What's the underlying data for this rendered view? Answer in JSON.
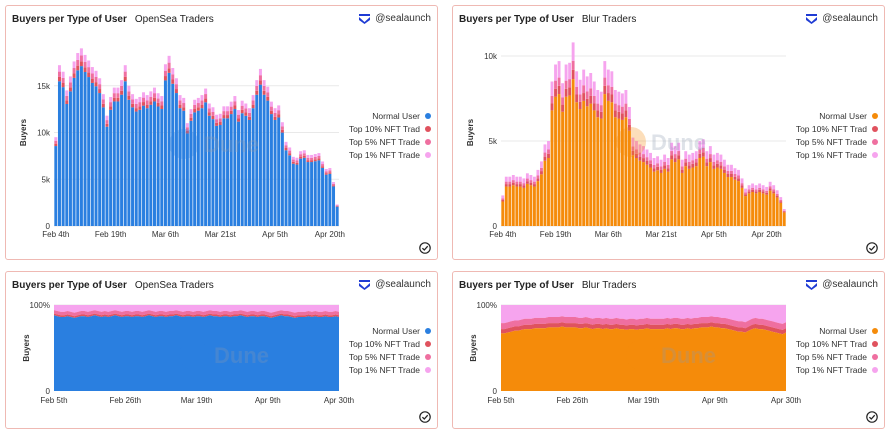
{
  "brand": "@sealaunch",
  "colors": {
    "normal_opensea": "#2a7fe0",
    "normal_blur": "#f58b0a",
    "top10": "#e0525e",
    "top5": "#ef6fa0",
    "top1": "#f6a4ee"
  },
  "panels": [
    {
      "title_bold": "Buyers per Type of User",
      "title_sub": "OpenSea Traders",
      "legend": [
        "Normal User",
        "Top 10% NFT Trad",
        "Top 5% NFT Trade",
        "Top 1% NFT Trade"
      ]
    },
    {
      "title_bold": "Buyers per Type of User",
      "title_sub": "Blur Traders",
      "legend": [
        "Normal User",
        "Top 10% NFT Trad",
        "Top 5% NFT Trade",
        "Top 1% NFT Trade"
      ]
    },
    {
      "title_bold": "Buyers per Type of User",
      "title_sub": "OpenSea Traders",
      "legend": [
        "Normal User",
        "Top 10% NFT Trad",
        "Top 5% NFT Trade",
        "Top 1% NFT Trade"
      ]
    },
    {
      "title_bold": "Buyers per Type of User",
      "title_sub": "Blur Traders",
      "legend": [
        "Normal User",
        "Top 10% NFT Trad",
        "Top 5% NFT Trade",
        "Top 1% NFT Trade"
      ]
    }
  ],
  "chart_data": [
    {
      "type": "bar",
      "stacked": true,
      "title": "Buyers per Type of User OpenSea Traders",
      "ylabel": "Buyers",
      "ylim": [
        0,
        20000
      ],
      "yticks": [
        0,
        5000,
        10000,
        15000
      ],
      "ytick_labels": [
        "0",
        "5k",
        "10k",
        "15k"
      ],
      "xtick_labels": [
        "Feb 4th",
        "Feb 19th",
        "Mar 6th",
        "Mar 21st",
        "Apr 5th",
        "Apr 20th"
      ],
      "xtick_index": [
        0,
        15,
        30,
        45,
        60,
        75
      ],
      "totals": [
        9500,
        17200,
        16500,
        14500,
        16000,
        17600,
        18500,
        19000,
        18300,
        17700,
        17000,
        16600,
        15800,
        14100,
        11800,
        13800,
        14800,
        14800,
        15600,
        17200,
        15000,
        14100,
        13600,
        13800,
        14300,
        14000,
        14400,
        14800,
        14200,
        13900,
        17300,
        18200,
        16900,
        15800,
        14000,
        13700,
        11000,
        12500,
        13500,
        13700,
        14000,
        14700,
        13100,
        12700,
        11900,
        12000,
        12800,
        12800,
        13300,
        13900,
        12400,
        13400,
        13100,
        12600,
        14000,
        15600,
        16800,
        15600,
        14900,
        13300,
        12600,
        12900,
        11100,
        9000,
        8400,
        7400,
        7300,
        8000,
        8100,
        7600,
        7600,
        7700,
        7800,
        6900,
        6100,
        6200,
        4700,
        2300
      ],
      "shares": {
        "normal": 0.9,
        "top10": 0.027,
        "top5": 0.033,
        "top1": 0.04
      }
    },
    {
      "type": "bar",
      "stacked": true,
      "title": "Buyers per Type of User Blur Traders",
      "ylabel": "Buyers",
      "ylim": [
        0,
        11000
      ],
      "yticks": [
        0,
        5000,
        10000
      ],
      "ytick_labels": [
        "0",
        "5k",
        "10k"
      ],
      "xtick_labels": [
        "Feb 4th",
        "Feb 19th",
        "Mar 6th",
        "Mar 21st",
        "Apr 5th",
        "Apr 20th"
      ],
      "xtick_index": [
        0,
        15,
        30,
        45,
        60,
        75
      ],
      "totals": [
        1800,
        2900,
        2900,
        3000,
        2900,
        2900,
        2800,
        3100,
        3000,
        2900,
        3300,
        3800,
        4800,
        5000,
        8500,
        9500,
        9700,
        8400,
        9500,
        9600,
        10800,
        9100,
        8600,
        9200,
        8800,
        9000,
        8500,
        8000,
        7900,
        9700,
        9200,
        9100,
        8000,
        7900,
        7800,
        8000,
        7000,
        5200,
        5000,
        4800,
        4700,
        4500,
        4300,
        4000,
        4100,
        3900,
        4200,
        4000,
        4900,
        4700,
        4900,
        3900,
        4400,
        4200,
        4300,
        4400,
        5000,
        5100,
        4400,
        4700,
        4200,
        4300,
        4200,
        3900,
        3600,
        3600,
        3400,
        3300,
        2800,
        2200,
        2400,
        2500,
        2400,
        2500,
        2400,
        2300,
        2600,
        2400,
        2100,
        1700,
        1000
      ],
      "shares": {
        "normal": 0.8,
        "top10": 0.05,
        "top5": 0.05,
        "top1": 0.1
      }
    },
    {
      "type": "area",
      "stacked": true,
      "percent": true,
      "title": "Buyers per Type of User OpenSea Traders",
      "ylabel": "Buyers",
      "ylim": [
        0,
        100
      ],
      "yticks": [
        0,
        100
      ],
      "ytick_labels": [
        "0",
        "100%"
      ],
      "xtick_labels": [
        "Feb 5th",
        "Feb 26th",
        "Mar 19th",
        "Apr 9th",
        "Apr 30th"
      ],
      "xtick_index": [
        0,
        21,
        42,
        63,
        84
      ],
      "normal": [
        88,
        87,
        86,
        86,
        87,
        86,
        85,
        86,
        87,
        87,
        86,
        87,
        88,
        87,
        86,
        87,
        86,
        87,
        88,
        87,
        86,
        87,
        87,
        86,
        87,
        87,
        86,
        87,
        88,
        87,
        86,
        87,
        87,
        86,
        87,
        87,
        88,
        87,
        86,
        87,
        87,
        86,
        87,
        87,
        86,
        87,
        88,
        87,
        87,
        86,
        87,
        87,
        86,
        87,
        87,
        88,
        87,
        86,
        87,
        87,
        86,
        87,
        87,
        86,
        85,
        86,
        87,
        88,
        87,
        87,
        86,
        85,
        86,
        86,
        86,
        87,
        86,
        87,
        86,
        86,
        87,
        86,
        86,
        87,
        86
      ],
      "top10": [
        2,
        2,
        2,
        2,
        2,
        2,
        2,
        2,
        2,
        2,
        2,
        2,
        2,
        2,
        2,
        2,
        2,
        2,
        2,
        2,
        2,
        2,
        2,
        2,
        2,
        2,
        2,
        2,
        2,
        2,
        2,
        2,
        2,
        2,
        2,
        2,
        2,
        2,
        2,
        2,
        2,
        2,
        2,
        2,
        2,
        2,
        2,
        2,
        2,
        2,
        2,
        2,
        2,
        2,
        2,
        2,
        2,
        2,
        2,
        2,
        2,
        2,
        2,
        2,
        2,
        2,
        2,
        2,
        2,
        2,
        2,
        2,
        2,
        2,
        2,
        2,
        2,
        2,
        2,
        2,
        2,
        2,
        2,
        2,
        2
      ],
      "top5": [
        4,
        4,
        4,
        4,
        4,
        4,
        4,
        4,
        4,
        4,
        4,
        4,
        4,
        4,
        4,
        4,
        4,
        4,
        4,
        4,
        4,
        4,
        4,
        4,
        4,
        4,
        4,
        4,
        4,
        4,
        4,
        4,
        4,
        4,
        4,
        4,
        4,
        4,
        4,
        4,
        4,
        4,
        4,
        4,
        4,
        4,
        4,
        4,
        4,
        4,
        4,
        4,
        4,
        4,
        4,
        4,
        4,
        4,
        4,
        4,
        4,
        4,
        4,
        4,
        4,
        4,
        4,
        4,
        4,
        4,
        4,
        4,
        4,
        4,
        4,
        4,
        4,
        4,
        4,
        4,
        4,
        4,
        4,
        4,
        4
      ]
    },
    {
      "type": "area",
      "stacked": true,
      "percent": true,
      "title": "Buyers per Type of User Blur Traders",
      "ylabel": "Buyers",
      "ylim": [
        0,
        100
      ],
      "yticks": [
        0,
        100
      ],
      "ytick_labels": [
        "0",
        "100%"
      ],
      "xtick_labels": [
        "Feb 5th",
        "Feb 26th",
        "Mar 19th",
        "Apr 9th",
        "Apr 30th"
      ],
      "xtick_index": [
        0,
        21,
        42,
        63,
        84
      ],
      "normal": [
        67,
        67,
        68,
        69,
        70,
        70,
        71,
        72,
        72,
        72,
        73,
        73,
        73,
        73,
        74,
        74,
        74,
        74,
        75,
        74,
        74,
        74,
        74,
        73,
        73,
        74,
        73,
        72,
        73,
        73,
        72,
        73,
        72,
        72,
        73,
        72,
        72,
        71,
        72,
        72,
        71,
        72,
        72,
        73,
        72,
        72,
        72,
        72,
        72,
        73,
        72,
        73,
        73,
        72,
        72,
        73,
        72,
        73,
        73,
        74,
        74,
        74,
        75,
        74,
        74,
        73,
        73,
        72,
        71,
        70,
        69,
        69,
        68,
        70,
        72,
        73,
        72,
        72,
        71,
        70,
        69,
        68,
        67,
        66,
        68
      ],
      "top10": [
        5,
        5,
        5,
        5,
        5,
        5,
        5,
        5,
        5,
        5,
        5,
        5,
        5,
        5,
        5,
        5,
        5,
        5,
        5,
        5,
        5,
        5,
        5,
        5,
        5,
        5,
        5,
        5,
        5,
        5,
        5,
        5,
        5,
        5,
        5,
        5,
        5,
        5,
        5,
        5,
        5,
        5,
        5,
        5,
        5,
        5,
        5,
        5,
        5,
        5,
        5,
        5,
        5,
        5,
        5,
        5,
        5,
        5,
        5,
        5,
        5,
        5,
        5,
        5,
        5,
        5,
        5,
        5,
        5,
        5,
        5,
        5,
        5,
        5,
        5,
        5,
        5,
        5,
        5,
        5,
        5,
        5,
        5,
        5,
        5
      ],
      "top5": [
        7,
        7,
        7,
        7,
        7,
        7,
        7,
        7,
        7,
        7,
        7,
        7,
        7,
        7,
        7,
        7,
        7,
        7,
        7,
        7,
        7,
        7,
        7,
        7,
        7,
        7,
        7,
        7,
        7,
        7,
        7,
        7,
        7,
        7,
        7,
        7,
        7,
        7,
        7,
        7,
        7,
        7,
        7,
        7,
        7,
        7,
        7,
        7,
        7,
        7,
        7,
        7,
        7,
        7,
        7,
        7,
        7,
        7,
        7,
        7,
        7,
        7,
        7,
        7,
        7,
        7,
        7,
        7,
        7,
        7,
        7,
        7,
        7,
        7,
        7,
        7,
        7,
        7,
        7,
        7,
        7,
        7,
        7,
        7,
        7
      ]
    }
  ]
}
